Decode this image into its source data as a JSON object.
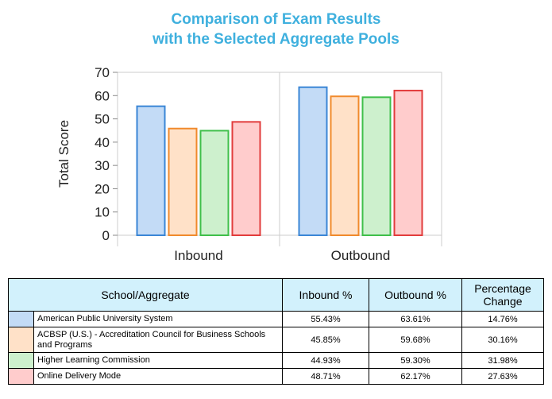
{
  "title_lines": [
    "Comparison of Exam Results",
    "with the Selected Aggregate Pools"
  ],
  "chart_data": {
    "type": "bar",
    "title": "Comparison of Exam Results with the Selected Aggregate Pools",
    "ylabel": "Total Score",
    "ylim": [
      0,
      70
    ],
    "yticks": [
      0,
      10,
      20,
      30,
      40,
      50,
      60,
      70
    ],
    "categories": [
      "Inbound",
      "Outbound"
    ],
    "series": [
      {
        "name": "American Public University System",
        "values": [
          55.43,
          63.61
        ],
        "fill": "#c3dbf6",
        "stroke": "#3a86d6"
      },
      {
        "name": "ACBSP (U.S.) - Accreditation Council for Business Schools and Programs",
        "values": [
          45.85,
          59.68
        ],
        "fill": "#ffe1c8",
        "stroke": "#f08a2c"
      },
      {
        "name": "Higher Learning Commission",
        "values": [
          44.93,
          59.3
        ],
        "fill": "#cdf0cd",
        "stroke": "#3fbf4a"
      },
      {
        "name": "Online Delivery Mode",
        "values": [
          48.71,
          62.17
        ],
        "fill": "#ffcccc",
        "stroke": "#e23c3c"
      }
    ],
    "grid": "vertical-category-dividers",
    "legend": "table-below"
  },
  "table": {
    "headers": [
      "School/Aggregate",
      "Inbound %",
      "Outbound %",
      "Percentage Change"
    ],
    "rows": [
      {
        "name": "American Public University System",
        "inbound": "55.43%",
        "outbound": "63.61%",
        "change": "14.76%",
        "color": "#c3dbf6"
      },
      {
        "name": "ACBSP (U.S.) - Accreditation Council for Business Schools and Programs",
        "inbound": "45.85%",
        "outbound": "59.68%",
        "change": "30.16%",
        "color": "#ffe1c8"
      },
      {
        "name": "Higher Learning Commission",
        "inbound": "44.93%",
        "outbound": "59.30%",
        "change": "31.98%",
        "color": "#cdf0cd"
      },
      {
        "name": "Online Delivery Mode",
        "inbound": "48.71%",
        "outbound": "62.17%",
        "change": "27.63%",
        "color": "#ffcccc"
      }
    ]
  }
}
